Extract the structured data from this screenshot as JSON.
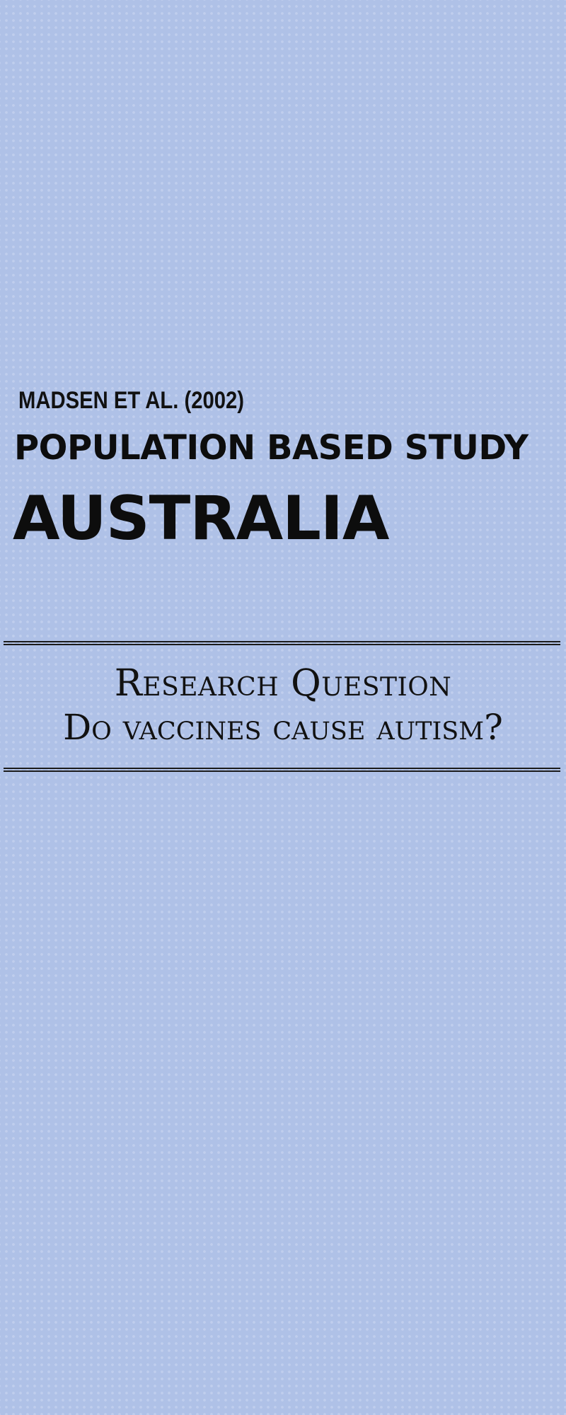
{
  "header": {
    "citation": "MADSEN ET AL. (2002)",
    "study_type": "POPULATION BASED STUDY",
    "location": "AUSTRALIA"
  },
  "research": {
    "heading": "Research Question",
    "question": "Do vaccines cause autism?"
  },
  "colors": {
    "background": "#afc1e7",
    "text": "#111111"
  }
}
